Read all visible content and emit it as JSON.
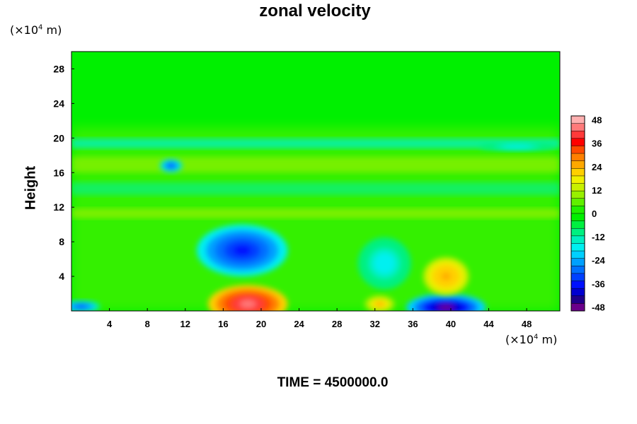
{
  "title": "zonal velocity",
  "y_unit": {
    "prefix": "(×10",
    "exp": "4",
    "suffix": " m)"
  },
  "x_unit": {
    "prefix": "(×10",
    "exp": "4",
    "suffix": " m)"
  },
  "footer": "TIME = 4500000.0",
  "chart_data": {
    "type": "heatmap",
    "title": "zonal velocity",
    "xlabel": "",
    "ylabel": "Height",
    "x_unit": "(×10^4 m)",
    "y_unit": "(×10^4 m)",
    "xlim": [
      0,
      51.5
    ],
    "ylim": [
      0,
      30
    ],
    "x_ticks": [
      4,
      8,
      12,
      16,
      20,
      24,
      28,
      32,
      36,
      40,
      44,
      48
    ],
    "y_ticks": [
      4,
      8,
      12,
      16,
      20,
      24,
      28
    ],
    "colorbar": {
      "min": -50,
      "max": 50,
      "ticks": [
        48,
        36,
        24,
        12,
        0,
        -12,
        -24,
        -36,
        -48
      ],
      "colors": [
        "#ffb0b0",
        "#ff7a7a",
        "#ff3a3a",
        "#ff0000",
        "#ff4a00",
        "#ff8000",
        "#ffa800",
        "#ffd000",
        "#f0f000",
        "#c8f000",
        "#98f000",
        "#60f000",
        "#20f000",
        "#00f000",
        "#00f040",
        "#00f080",
        "#00f0c0",
        "#00f0f0",
        "#00d0ff",
        "#00a0ff",
        "#0070ff",
        "#0040ff",
        "#0010ff",
        "#0000d0",
        "#20008a",
        "#6a008a"
      ]
    },
    "features": [
      {
        "x": 18.6,
        "y": 0.8,
        "value": 46,
        "rx": 4.2,
        "ry": 2.2
      },
      {
        "x": 18.0,
        "y": 7.0,
        "value": -38,
        "rx": 4.8,
        "ry": 3.0
      },
      {
        "x": 39.5,
        "y": 0.4,
        "value": -48,
        "rx": 4.2,
        "ry": 1.6
      },
      {
        "x": 39.5,
        "y": 4.0,
        "value": 26,
        "rx": 2.4,
        "ry": 2.2
      },
      {
        "x": 33.0,
        "y": 5.5,
        "value": -18,
        "rx": 2.8,
        "ry": 3.0
      },
      {
        "x": 32.5,
        "y": 0.8,
        "value": 24,
        "rx": 1.6,
        "ry": 1.0
      },
      {
        "x": 10.5,
        "y": 16.8,
        "value": -32,
        "rx": 1.2,
        "ry": 0.8
      },
      {
        "x": 1.0,
        "y": 0.5,
        "value": -32,
        "rx": 2.0,
        "ry": 0.7
      },
      {
        "x": 47.0,
        "y": 19.0,
        "value": -18,
        "rx": 4.0,
        "ry": 0.5
      }
    ]
  }
}
